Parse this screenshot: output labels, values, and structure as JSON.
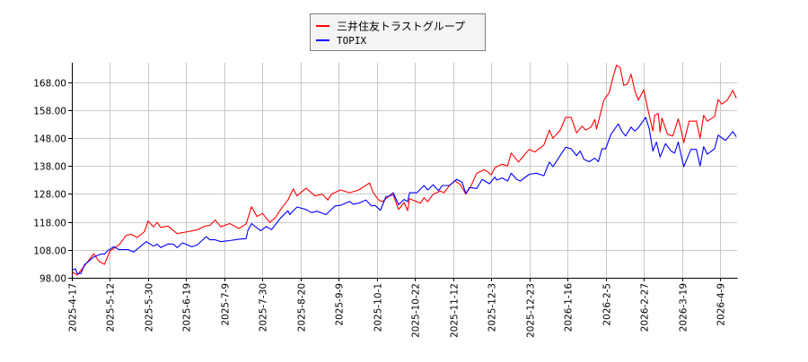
{
  "chart_data": {
    "type": "line",
    "title": "",
    "xlabel": "",
    "ylabel": "",
    "ylim": [
      98,
      174.9
    ],
    "xlim": [
      "2025-04-17",
      "2026-04-18"
    ],
    "grid": true,
    "legend_position": "top-center",
    "y_ticks": [
      "98.00",
      "108.00",
      "118.00",
      "128.00",
      "138.00",
      "148.00",
      "158.00",
      "168.00"
    ],
    "y_tick_values": [
      98,
      108,
      118,
      128,
      138,
      148,
      158,
      168
    ],
    "x_ticks": [
      "2025-4-17",
      "2025-5-12",
      "2025-5-30",
      "2025-6-19",
      "2025-7-9",
      "2025-7-30",
      "2025-8-20",
      "2025-9-9",
      "2025-10-1",
      "2025-10-22",
      "2025-11-12",
      "2025-12-3",
      "2025-12-23",
      "2026-1-16",
      "2026-2-5",
      "2026-2-27",
      "2026-3-19",
      "2026-4-9"
    ],
    "series": [
      {
        "name": "三井住友トラストグループ",
        "color": "#ff0000",
        "points": [
          [
            "2025-04-17",
            100.1
          ],
          [
            "2025-04-20",
            99
          ],
          [
            "2025-04-24",
            102.3
          ],
          [
            "2025-04-29",
            106.6
          ],
          [
            "2025-05-02",
            103.9
          ],
          [
            "2025-05-05",
            102.8
          ],
          [
            "2025-05-08",
            107.6
          ],
          [
            "2025-05-13",
            109.8
          ],
          [
            "2025-05-17",
            113.2
          ],
          [
            "2025-05-20",
            113.5
          ],
          [
            "2025-05-23",
            112.4
          ],
          [
            "2025-05-27",
            114.5
          ],
          [
            "2025-05-29",
            118.3
          ],
          [
            "2025-06-01",
            116.2
          ],
          [
            "2025-06-03",
            117.8
          ],
          [
            "2025-06-05",
            116
          ],
          [
            "2025-06-09",
            116.5
          ],
          [
            "2025-06-14",
            113.8
          ],
          [
            "2025-06-20",
            114.5
          ],
          [
            "2025-06-25",
            115.1
          ],
          [
            "2025-06-29",
            116.4
          ],
          [
            "2025-07-02",
            116.7
          ],
          [
            "2025-07-05",
            118.7
          ],
          [
            "2025-07-08",
            116.2
          ],
          [
            "2025-07-13",
            117.4
          ],
          [
            "2025-07-18",
            115.6
          ],
          [
            "2025-07-22",
            117.3
          ],
          [
            "2025-07-25",
            123.4
          ],
          [
            "2025-07-28",
            119.9
          ],
          [
            "2025-07-31",
            121
          ],
          [
            "2025-08-04",
            117.8
          ],
          [
            "2025-08-07",
            119.4
          ],
          [
            "2025-08-10",
            122.4
          ],
          [
            "2025-08-14",
            125.8
          ],
          [
            "2025-08-17",
            129.8
          ],
          [
            "2025-08-19",
            127.3
          ],
          [
            "2025-08-24",
            130
          ],
          [
            "2025-08-29",
            127.3
          ],
          [
            "2025-09-02",
            127.9
          ],
          [
            "2025-09-05",
            125.8
          ],
          [
            "2025-09-07",
            127.9
          ],
          [
            "2025-09-12",
            129.4
          ],
          [
            "2025-09-17",
            128.4
          ],
          [
            "2025-09-22",
            129.4
          ],
          [
            "2025-09-28",
            131.9
          ],
          [
            "2025-09-30",
            128.4
          ],
          [
            "2025-10-03",
            125.8
          ],
          [
            "2025-10-05",
            125.2
          ],
          [
            "2025-10-09",
            127.3
          ],
          [
            "2025-10-11",
            127.6
          ],
          [
            "2025-10-14",
            122.4
          ],
          [
            "2025-10-17",
            124.9
          ],
          [
            "2025-10-19",
            122
          ],
          [
            "2025-10-20",
            126.3
          ],
          [
            "2025-10-26",
            124.7
          ],
          [
            "2025-10-28",
            126.6
          ],
          [
            "2025-10-30",
            125.2
          ],
          [
            "2025-11-02",
            127.9
          ],
          [
            "2025-11-06",
            129
          ],
          [
            "2025-11-08",
            128.4
          ],
          [
            "2025-11-11",
            131
          ],
          [
            "2025-11-14",
            132.7
          ],
          [
            "2025-11-17",
            131.3
          ],
          [
            "2025-11-20",
            127.9
          ],
          [
            "2025-11-23",
            131
          ],
          [
            "2025-11-26",
            135.4
          ],
          [
            "2025-11-30",
            136.6
          ],
          [
            "2025-12-02",
            135.9
          ],
          [
            "2025-12-04",
            134.8
          ],
          [
            "2025-12-06",
            137.3
          ],
          [
            "2025-12-10",
            138.6
          ],
          [
            "2025-12-13",
            138
          ],
          [
            "2025-12-15",
            142.6
          ],
          [
            "2025-12-19",
            139.4
          ],
          [
            "2025-12-22",
            141.7
          ],
          [
            "2025-12-25",
            143.9
          ],
          [
            "2025-12-28",
            143
          ],
          [
            "2026-01-01",
            144.9
          ],
          [
            "2026-01-02",
            145.5
          ],
          [
            "2026-01-05",
            150.8
          ],
          [
            "2026-01-07",
            147.9
          ],
          [
            "2026-01-11",
            150.8
          ],
          [
            "2026-01-14",
            155.4
          ],
          [
            "2026-01-17",
            155.4
          ],
          [
            "2026-01-20",
            149.8
          ],
          [
            "2026-01-23",
            152.2
          ],
          [
            "2026-01-25",
            150.8
          ],
          [
            "2026-01-28",
            151.9
          ],
          [
            "2026-01-30",
            154.6
          ],
          [
            "2026-01-31",
            151.2
          ],
          [
            "2026-02-04",
            161.5
          ],
          [
            "2026-02-07",
            164.2
          ],
          [
            "2026-02-09",
            169.5
          ],
          [
            "2026-02-11",
            174
          ],
          [
            "2026-02-13",
            173.2
          ],
          [
            "2026-02-15",
            166.8
          ],
          [
            "2026-02-17",
            167.3
          ],
          [
            "2026-02-19",
            170.8
          ],
          [
            "2026-02-21",
            165.2
          ],
          [
            "2026-02-23",
            161.5
          ],
          [
            "2026-02-26",
            165.2
          ],
          [
            "2026-02-28",
            159
          ],
          [
            "2026-03-03",
            150.5
          ],
          [
            "2026-03-04",
            156.1
          ],
          [
            "2026-03-06",
            156.7
          ],
          [
            "2026-03-07",
            150.1
          ],
          [
            "2026-03-08",
            155.1
          ],
          [
            "2026-03-11",
            149.4
          ],
          [
            "2026-03-14",
            148.7
          ],
          [
            "2026-03-17",
            154.8
          ],
          [
            "2026-03-18",
            152.4
          ],
          [
            "2026-03-20",
            146.3
          ],
          [
            "2026-03-23",
            154
          ],
          [
            "2026-03-27",
            154
          ],
          [
            "2026-03-29",
            147.9
          ],
          [
            "2026-03-31",
            156.1
          ],
          [
            "2026-04-02",
            154
          ],
          [
            "2026-04-06",
            155.6
          ],
          [
            "2026-04-08",
            161.8
          ],
          [
            "2026-04-10",
            160.1
          ],
          [
            "2026-04-13",
            161.5
          ],
          [
            "2026-04-16",
            165
          ],
          [
            "2026-04-18",
            162.2
          ]
        ]
      },
      {
        "name": "TOPIX",
        "color": "#0000ff",
        "points": [
          [
            "2025-04-17",
            100.7
          ],
          [
            "2025-04-19",
            101.2
          ],
          [
            "2025-04-20",
            99.5
          ],
          [
            "2025-04-22",
            99.5
          ],
          [
            "2025-04-24",
            102.7
          ],
          [
            "2025-04-29",
            105.4
          ],
          [
            "2025-05-03",
            106.5
          ],
          [
            "2025-05-05",
            106.5
          ],
          [
            "2025-05-07",
            107.8
          ],
          [
            "2025-05-10",
            109.1
          ],
          [
            "2025-05-13",
            108.1
          ],
          [
            "2025-05-18",
            108.1
          ],
          [
            "2025-05-21",
            107.2
          ],
          [
            "2025-05-25",
            109.3
          ],
          [
            "2025-05-28",
            110.9
          ],
          [
            "2025-06-01",
            109.3
          ],
          [
            "2025-06-03",
            110
          ],
          [
            "2025-06-05",
            108.8
          ],
          [
            "2025-06-09",
            110.1
          ],
          [
            "2025-06-12",
            110
          ],
          [
            "2025-06-14",
            108.8
          ],
          [
            "2025-06-17",
            110.5
          ],
          [
            "2025-06-22",
            109.1
          ],
          [
            "2025-06-25",
            109.7
          ],
          [
            "2025-06-30",
            112.7
          ],
          [
            "2025-07-02",
            111.6
          ],
          [
            "2025-07-05",
            111.6
          ],
          [
            "2025-07-08",
            110.9
          ],
          [
            "2025-07-13",
            111.3
          ],
          [
            "2025-07-18",
            111.8
          ],
          [
            "2025-07-22",
            112
          ],
          [
            "2025-07-23",
            115
          ],
          [
            "2025-07-25",
            117.4
          ],
          [
            "2025-07-30",
            114.8
          ],
          [
            "2025-08-02",
            116.3
          ],
          [
            "2025-08-05",
            115.2
          ],
          [
            "2025-08-10",
            119.4
          ],
          [
            "2025-08-14",
            122
          ],
          [
            "2025-08-15",
            120.6
          ],
          [
            "2025-08-19",
            123.3
          ],
          [
            "2025-08-24",
            122.4
          ],
          [
            "2025-08-27",
            121.3
          ],
          [
            "2025-08-30",
            121.8
          ],
          [
            "2025-09-04",
            120.6
          ],
          [
            "2025-09-09",
            123.7
          ],
          [
            "2025-09-12",
            123.9
          ],
          [
            "2025-09-17",
            125.3
          ],
          [
            "2025-09-19",
            124.3
          ],
          [
            "2025-09-22",
            124.7
          ],
          [
            "2025-09-26",
            125.8
          ],
          [
            "2025-09-29",
            123.7
          ],
          [
            "2025-10-01",
            123.9
          ],
          [
            "2025-10-04",
            122.1
          ],
          [
            "2025-10-07",
            127
          ],
          [
            "2025-10-09",
            127.3
          ],
          [
            "2025-10-11",
            128.4
          ],
          [
            "2025-10-14",
            124.1
          ],
          [
            "2025-10-17",
            126
          ],
          [
            "2025-10-19",
            125.2
          ],
          [
            "2025-10-20",
            128.4
          ],
          [
            "2025-10-24",
            128.4
          ],
          [
            "2025-10-28",
            131
          ],
          [
            "2025-10-30",
            129.4
          ],
          [
            "2025-11-02",
            131.3
          ],
          [
            "2025-11-05",
            129.1
          ],
          [
            "2025-11-07",
            131
          ],
          [
            "2025-11-11",
            131
          ],
          [
            "2025-11-15",
            133.2
          ],
          [
            "2025-11-18",
            132.1
          ],
          [
            "2025-11-20",
            128.1
          ],
          [
            "2025-11-22",
            130.3
          ],
          [
            "2025-11-26",
            129.9
          ],
          [
            "2025-11-29",
            133.2
          ],
          [
            "2025-12-03",
            131.6
          ],
          [
            "2025-12-06",
            134
          ],
          [
            "2025-12-07",
            133
          ],
          [
            "2025-12-10",
            133.7
          ],
          [
            "2025-12-13",
            132.6
          ],
          [
            "2025-12-15",
            135.4
          ],
          [
            "2025-12-18",
            133.2
          ],
          [
            "2025-12-20",
            132.6
          ],
          [
            "2025-12-25",
            135
          ],
          [
            "2025-12-29",
            135.4
          ],
          [
            "2026-01-02",
            134.5
          ],
          [
            "2026-01-05",
            139.4
          ],
          [
            "2026-01-07",
            137.7
          ],
          [
            "2026-01-11",
            141.7
          ],
          [
            "2026-01-14",
            144.7
          ],
          [
            "2026-01-17",
            144.1
          ],
          [
            "2026-01-20",
            141.7
          ],
          [
            "2026-01-22",
            143.3
          ],
          [
            "2026-01-24",
            140.4
          ],
          [
            "2026-01-27",
            139.5
          ],
          [
            "2026-01-30",
            140.8
          ],
          [
            "2026-02-01",
            139.5
          ],
          [
            "2026-02-03",
            144.1
          ],
          [
            "2026-02-05",
            144.1
          ],
          [
            "2026-02-08",
            149.4
          ],
          [
            "2026-02-12",
            153
          ],
          [
            "2026-02-14",
            150.3
          ],
          [
            "2026-02-16",
            148.7
          ],
          [
            "2026-02-19",
            151.9
          ],
          [
            "2026-02-21",
            150.5
          ],
          [
            "2026-02-23",
            151.6
          ],
          [
            "2026-02-27",
            155.4
          ],
          [
            "2026-03-01",
            151.4
          ],
          [
            "2026-03-03",
            143.3
          ],
          [
            "2026-03-05",
            146.5
          ],
          [
            "2026-03-07",
            141.2
          ],
          [
            "2026-03-10",
            146
          ],
          [
            "2026-03-13",
            143.3
          ],
          [
            "2026-03-15",
            142.6
          ],
          [
            "2026-03-17",
            146.5
          ],
          [
            "2026-03-20",
            137.7
          ],
          [
            "2026-03-24",
            143.9
          ],
          [
            "2026-03-27",
            143.9
          ],
          [
            "2026-03-29",
            138
          ],
          [
            "2026-03-31",
            144.9
          ],
          [
            "2026-04-02",
            142.2
          ],
          [
            "2026-04-06",
            144.1
          ],
          [
            "2026-04-08",
            149
          ],
          [
            "2026-04-12",
            147.1
          ],
          [
            "2026-04-16",
            150.3
          ],
          [
            "2026-04-18",
            148.4
          ]
        ]
      }
    ]
  }
}
